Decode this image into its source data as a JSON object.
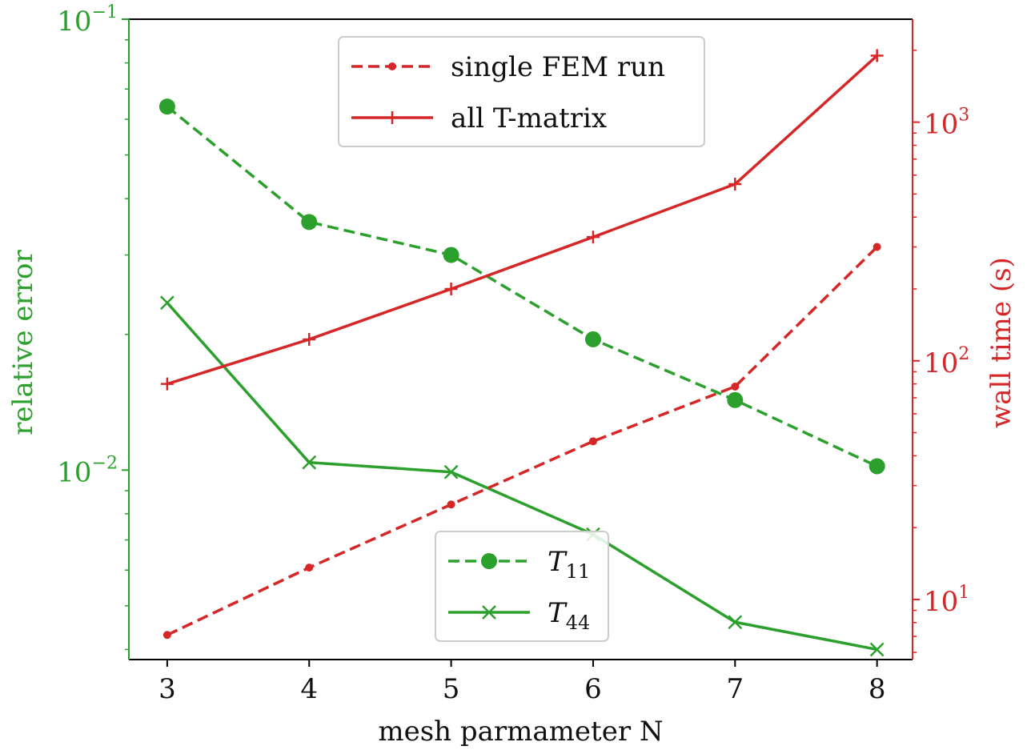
{
  "chart_data": {
    "type": "line",
    "xlabel": "mesh parmameter N",
    "ylabel_left": "relative error",
    "ylabel_right": "wall time (s)",
    "x": [
      3,
      4,
      5,
      6,
      7,
      8
    ],
    "x_ticks": [
      "3",
      "4",
      "5",
      "6",
      "7",
      "8"
    ],
    "xlim": [
      2.73,
      8.25
    ],
    "left_axis": {
      "scale": "log",
      "ylim": [
        0.0038,
        0.1
      ],
      "ticks": [
        {
          "value": 0.1,
          "base": "10",
          "exp": "−1"
        },
        {
          "value": 0.01,
          "base": "10",
          "exp": "−2"
        }
      ],
      "color": "#2ca02c"
    },
    "right_axis": {
      "scale": "log",
      "ylim": [
        5.6,
        2700
      ],
      "ticks": [
        {
          "value": 10,
          "base": "10",
          "exp": "1"
        },
        {
          "value": 100,
          "base": "10",
          "exp": "2"
        },
        {
          "value": 1000,
          "base": "10",
          "exp": "3"
        }
      ],
      "color": "#d62728"
    },
    "series": [
      {
        "key": "t11",
        "name_base": "T",
        "name_sub": "11",
        "axis": "left",
        "color": "#2ca02c",
        "style": "dashed",
        "marker": "circle",
        "values": [
          0.064,
          0.0355,
          0.03,
          0.0195,
          0.0143,
          0.0102
        ]
      },
      {
        "key": "t44",
        "name_base": "T",
        "name_sub": "44",
        "axis": "left",
        "color": "#2ca02c",
        "style": "solid",
        "marker": "x",
        "values": [
          0.0235,
          0.0104,
          0.0099,
          0.0072,
          0.0046,
          0.004
        ]
      },
      {
        "key": "fem",
        "name": "single FEM run",
        "axis": "right",
        "color": "#d62728",
        "style": "dashed",
        "marker": "dot",
        "values": [
          7.1,
          13.6,
          25.0,
          46.0,
          78.0,
          300.0
        ]
      },
      {
        "key": "tmatrix",
        "name": "all T-matrix",
        "axis": "right",
        "color": "#d62728",
        "style": "solid",
        "marker": "plus",
        "values": [
          80.0,
          123.0,
          200.0,
          330.0,
          550.0,
          1900.0
        ]
      }
    ],
    "legends": [
      {
        "placement": "top-center",
        "items": [
          "fem",
          "tmatrix"
        ]
      },
      {
        "placement": "bottom-center",
        "items": [
          "t11",
          "t44"
        ]
      }
    ],
    "grid": false
  }
}
